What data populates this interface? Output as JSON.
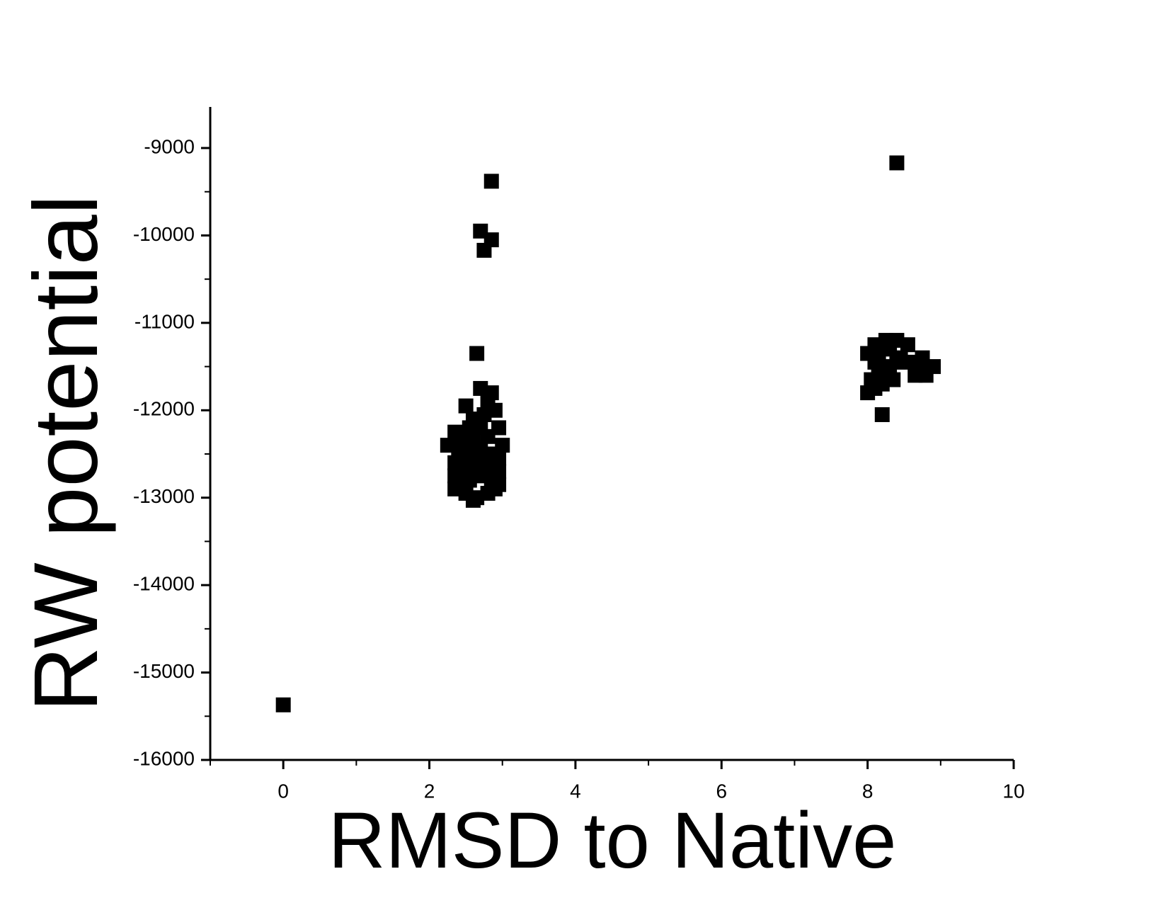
{
  "chart_data": {
    "type": "scatter",
    "x_label": "RMSD to Native",
    "y_label": "RW potential",
    "color": "#000000",
    "x": [
      0,
      2.85,
      2.7,
      2.85,
      2.75,
      2.65,
      2.7,
      2.5,
      2.85,
      2.8,
      2.6,
      2.75,
      2.9,
      2.35,
      2.55,
      2.7,
      2.95,
      2.25,
      2.45,
      2.6,
      2.8,
      3.0,
      2.4,
      2.55,
      2.7,
      2.85,
      2.95,
      2.35,
      2.5,
      2.65,
      2.8,
      2.95,
      2.35,
      2.55,
      2.7,
      2.85,
      2.95,
      2.35,
      2.5,
      2.65,
      2.8,
      2.6,
      2.9,
      2.75,
      2.6,
      8.4,
      8.1,
      8.25,
      8.4,
      8.55,
      8.0,
      8.15,
      8.3,
      8.45,
      8.6,
      8.75,
      8.1,
      8.25,
      8.4,
      8.7,
      8.9,
      8.65,
      8.8,
      8.15,
      8.3,
      8.05,
      8.2,
      8.35,
      8.0,
      8.1,
      8.2
    ],
    "values": [
      -15370,
      -9380,
      -9950,
      -10050,
      -10170,
      -11350,
      -11750,
      -11950,
      -11800,
      -11900,
      -12100,
      -12050,
      -12000,
      -12250,
      -12200,
      -12200,
      -12200,
      -12400,
      -12350,
      -12350,
      -12300,
      -12400,
      -12500,
      -12500,
      -12450,
      -12500,
      -12550,
      -12600,
      -12650,
      -12600,
      -12650,
      -12700,
      -12750,
      -12800,
      -12750,
      -12800,
      -12850,
      -12900,
      -12950,
      -13000,
      -12950,
      -13030,
      -12900,
      -12550,
      -12450,
      -9170,
      -11250,
      -11200,
      -11200,
      -11250,
      -11350,
      -11350,
      -11300,
      -11400,
      -11450,
      -11400,
      -11450,
      -11500,
      -11450,
      -11550,
      -11500,
      -11600,
      -11600,
      -11550,
      -11600,
      -11650,
      -11700,
      -11650,
      -11800,
      -11750,
      -12050
    ],
    "xlim": [
      -1,
      10
    ],
    "xticks": [
      0,
      2,
      4,
      6,
      8,
      10
    ],
    "ylim": [
      -16000,
      -8530
    ],
    "yticks": [
      -16000,
      -15000,
      -14000,
      -13000,
      -12000,
      -11000,
      -10000,
      -9000
    ],
    "grid": false
  }
}
